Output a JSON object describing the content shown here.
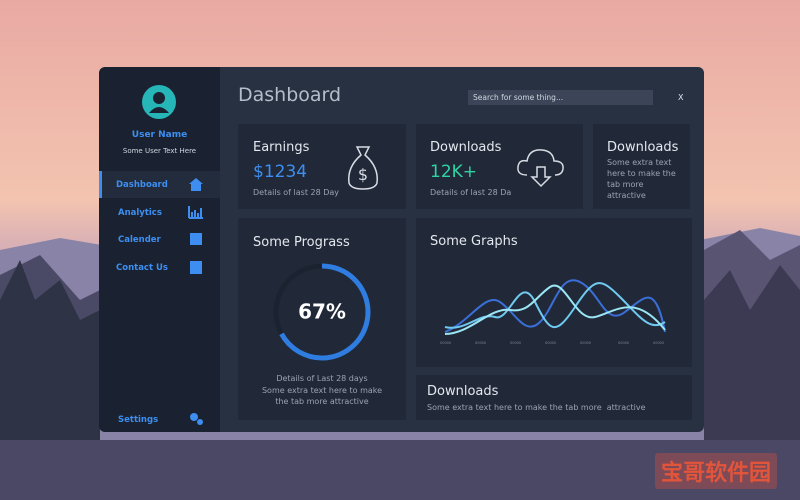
{
  "user": {
    "name": "User Name",
    "subtitle": "Some User Text Here"
  },
  "nav": [
    "Dashboard",
    "Analytics",
    "Calender",
    "Contact Us"
  ],
  "settings": "Settings",
  "header": {
    "title": "Dashboard",
    "search_placeholder": "Search for some thing...",
    "close": "X"
  },
  "cards": [
    {
      "title": "Earnings",
      "value": "$1234",
      "detail": "Details of last 28 Day"
    },
    {
      "title": "Downloads",
      "value": "12K+",
      "detail": "Details of last 28 Da"
    },
    {
      "title": "Downloads",
      "text": "Some extra text here to make the tab more attractive"
    }
  ],
  "progress": {
    "title": "Some Prograss",
    "value": 67,
    "label": "67%",
    "detail": "Details of Last 28 days",
    "text": "Some extra text here to make the tab more attractive"
  },
  "graphs": {
    "title": "Some Graphs"
  },
  "bottom": {
    "title": "Downloads",
    "text": "Some extra text here to make the tab more  attractive"
  },
  "watermark": "宝哥软件园"
}
